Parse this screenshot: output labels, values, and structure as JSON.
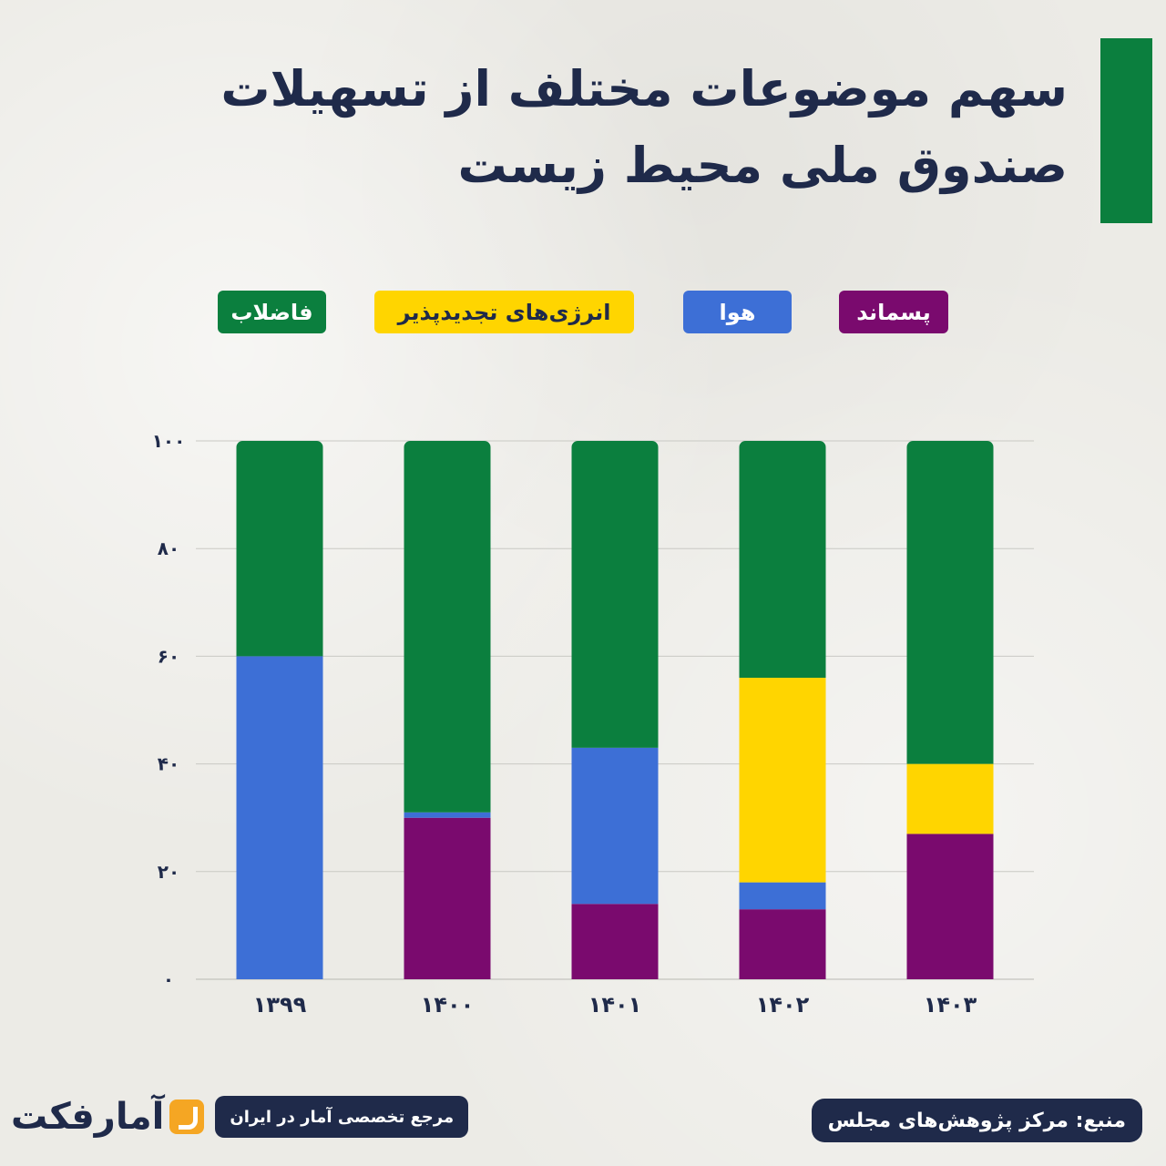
{
  "title": {
    "line1": "سهم موضوعات مختلف از تسهیلات",
    "line2": "صندوق ملی محیط زیست"
  },
  "colors": {
    "waste": "#7a0a6e",
    "air": "#3d6fd6",
    "renewable": "#ffd500",
    "sewage": "#0b7f3e",
    "title_text": "#1f2a4a",
    "axis_text": "#1f2a4a"
  },
  "footer": {
    "logo_text": "آمارفکت",
    "tagline": "مرجع تخصصی آمار در ایران",
    "source": "منبع: مرکز پژوهش‌های مجلس"
  },
  "chart_data": {
    "type": "bar",
    "stacked": true,
    "categories": [
      "۱۳۹۹",
      "۱۴۰۰",
      "۱۴۰۱",
      "۱۴۰۲",
      "۱۴۰۳"
    ],
    "y_ticks": [
      "۰",
      "۲۰",
      "۴۰",
      "۶۰",
      "۸۰",
      "۱۰۰"
    ],
    "ylim": [
      0,
      100
    ],
    "grid": true,
    "legend_position": "top",
    "series": [
      {
        "key": "waste",
        "name": "پسماند",
        "values": [
          0,
          30,
          14,
          13,
          27
        ]
      },
      {
        "key": "air",
        "name": "هوا",
        "values": [
          60,
          1,
          29,
          5,
          0
        ]
      },
      {
        "key": "renewable",
        "name": "انرژی‌های تجدیدپذیر",
        "values": [
          0,
          0,
          0,
          38,
          13
        ]
      },
      {
        "key": "sewage",
        "name": "فاضلاب",
        "values": [
          40,
          69,
          57,
          44,
          60
        ]
      }
    ]
  }
}
